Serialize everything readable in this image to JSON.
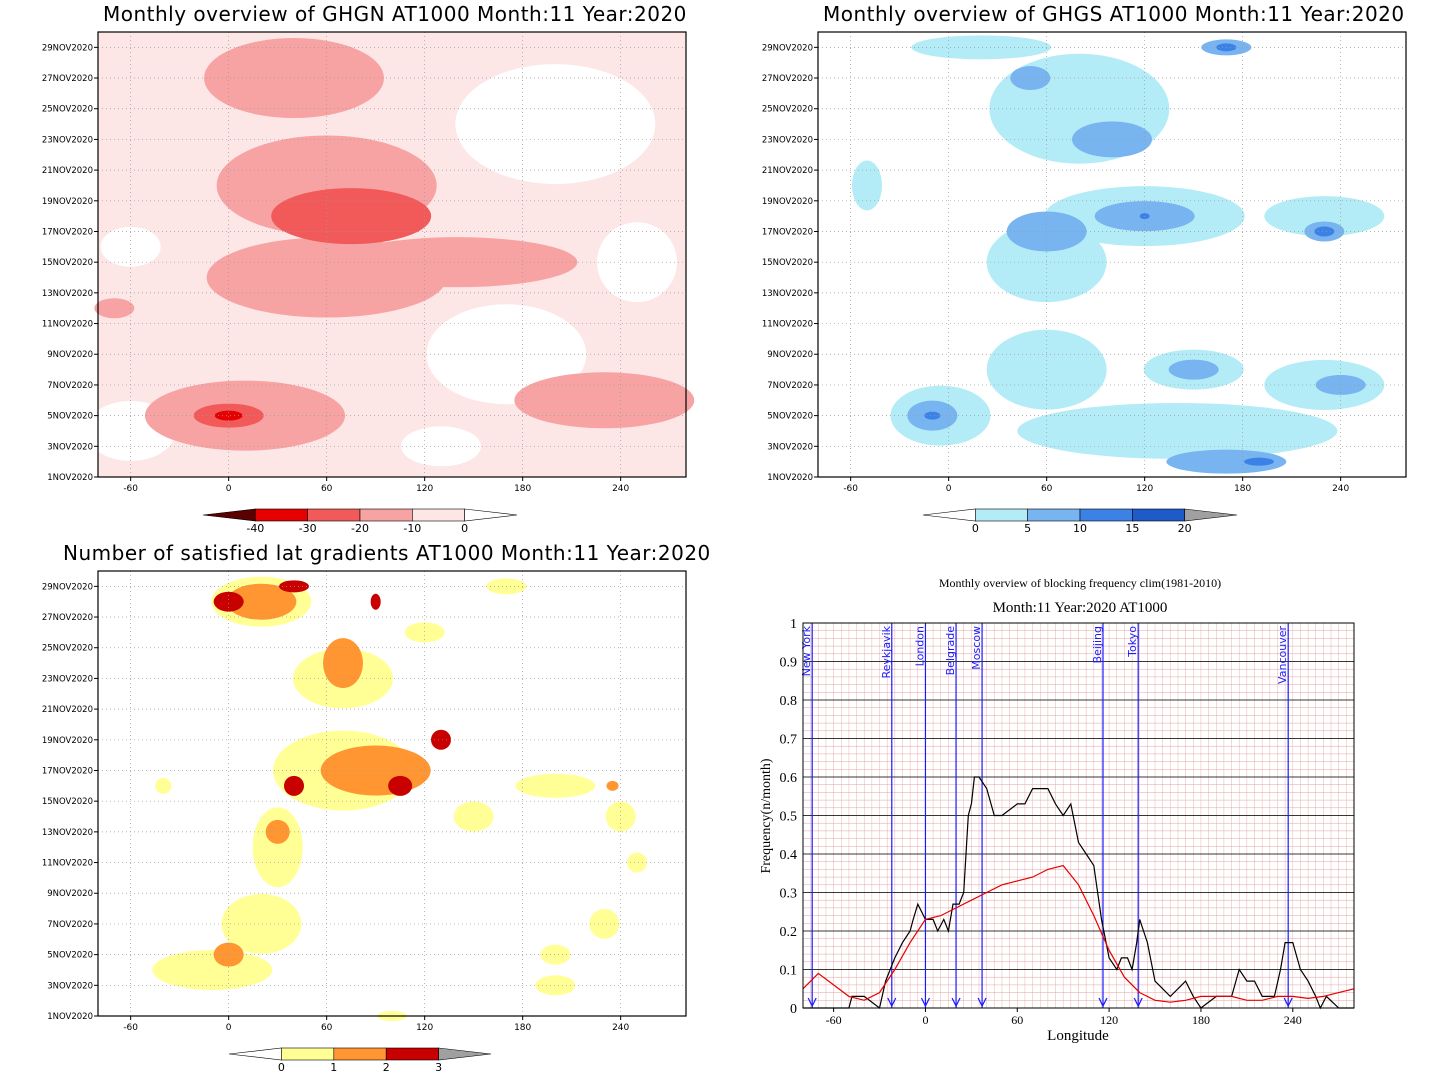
{
  "panels": {
    "ghgn": {
      "title": "Monthly overview of GHGN AT1000 Month:11 Year:2020",
      "cbar_labels": [
        "-40",
        "-30",
        "-20",
        "-10",
        "0"
      ],
      "cbar_colors": [
        "#5a0000",
        "#e60000",
        "#f25a5a",
        "#f7a3a3",
        "#fde6e6",
        "#ffffff"
      ]
    },
    "ghgs": {
      "title": "Monthly overview of GHGS AT1000 Month:11 Year:2020",
      "cbar_labels": [
        "0",
        "5",
        "10",
        "15",
        "20"
      ],
      "cbar_colors": [
        "#ffffff",
        "#b3ecf7",
        "#78b4f0",
        "#3c82e6",
        "#1e5ac8",
        "#a0a0a0"
      ]
    },
    "grad": {
      "title": "Number of satisfied lat gradients AT1000 Month:11 Year:2020",
      "cbar_labels": [
        "0",
        "1",
        "2",
        "3"
      ],
      "cbar_colors": [
        "#ffffff",
        "#ffff96",
        "#ff9632",
        "#c80000",
        "#a0a0a0"
      ]
    },
    "block": {
      "title1": "Monthly overview of blocking frequency clim(1981-2010)",
      "title2": "Month:11 Year:2020  AT1000",
      "xlabel": "Longitude",
      "ylabel": "Frequency(n/month)"
    }
  },
  "chart_data": [
    {
      "type": "heatmap",
      "title": "Monthly overview of GHGN AT1000 Month:11 Year:2020",
      "x_ticks": [
        "-60",
        "0",
        "60",
        "120",
        "180",
        "240"
      ],
      "y_ticks": [
        "1NOV2020",
        "3NOV2020",
        "5NOV2020",
        "7NOV2020",
        "9NOV2020",
        "11NOV2020",
        "13NOV2020",
        "15NOV2020",
        "17NOV2020",
        "19NOV2020",
        "21NOV2020",
        "23NOV2020",
        "25NOV2020",
        "27NOV2020",
        "29NOV2020"
      ],
      "xlim": [
        -80,
        280
      ],
      "legend_levels": [
        -40,
        -30,
        -20,
        -10,
        0
      ],
      "features": [
        {
          "lon": 0,
          "day": 5,
          "value": -30
        },
        {
          "lon": 75,
          "day": 18,
          "value": -30
        },
        {
          "lon": 70,
          "day": 16,
          "value": -20
        },
        {
          "lon": 40,
          "day": 28,
          "value": -20
        },
        {
          "lon": 150,
          "day": 16,
          "value": -20
        },
        {
          "lon": 230,
          "day": 6,
          "value": -20
        }
      ]
    },
    {
      "type": "heatmap",
      "title": "Monthly overview of GHGS AT1000 Month:11 Year:2020",
      "x_ticks": [
        "-60",
        "0",
        "60",
        "120",
        "180",
        "240"
      ],
      "y_ticks": [
        "1NOV2020",
        "3NOV2020",
        "5NOV2020",
        "7NOV2020",
        "9NOV2020",
        "11NOV2020",
        "13NOV2020",
        "15NOV2020",
        "17NOV2020",
        "19NOV2020",
        "21NOV2020",
        "23NOV2020",
        "25NOV2020",
        "27NOV2020",
        "29NOV2020"
      ],
      "xlim": [
        -80,
        280
      ],
      "legend_levels": [
        0,
        5,
        10,
        15,
        20
      ],
      "features": [
        {
          "lon": -10,
          "day": 5,
          "value": 15
        },
        {
          "lon": 230,
          "day": 17,
          "value": 15
        },
        {
          "lon": 190,
          "day": 2,
          "value": 15
        },
        {
          "lon": 120,
          "day": 18,
          "value": 10
        },
        {
          "lon": 240,
          "day": 7,
          "value": 10
        },
        {
          "lon": 170,
          "day": 29,
          "value": 15
        }
      ]
    },
    {
      "type": "heatmap",
      "title": "Number of satisfied lat gradients AT1000 Month:11 Year:2020",
      "x_ticks": [
        "-60",
        "0",
        "60",
        "120",
        "180",
        "240"
      ],
      "y_ticks": [
        "1NOV2020",
        "3NOV2020",
        "5NOV2020",
        "7NOV2020",
        "9NOV2020",
        "11NOV2020",
        "13NOV2020",
        "15NOV2020",
        "17NOV2020",
        "19NOV2020",
        "21NOV2020",
        "23NOV2020",
        "25NOV2020",
        "27NOV2020",
        "29NOV2020"
      ],
      "xlim": [
        -80,
        280
      ],
      "legend_levels": [
        0,
        1,
        2,
        3
      ],
      "features": [
        {
          "lon": 0,
          "day": 28,
          "value": 3
        },
        {
          "lon": 40,
          "day": 29,
          "value": 3
        },
        {
          "lon": 40,
          "day": 16,
          "value": 3
        },
        {
          "lon": 105,
          "day": 16,
          "value": 3
        },
        {
          "lon": 130,
          "day": 19,
          "value": 3
        },
        {
          "lon": 0,
          "day": 5,
          "value": 2
        },
        {
          "lon": 235,
          "day": 16,
          "value": 2
        }
      ]
    },
    {
      "type": "line",
      "title": "Monthly overview of blocking frequency clim(1981-2010)",
      "subtitle": "Month:11 Year:2020  AT1000",
      "xlabel": "Longitude",
      "ylabel": "Frequency(n/month)",
      "xlim": [
        -80,
        280
      ],
      "ylim": [
        0,
        1
      ],
      "x_ticks": [
        "-60",
        "0",
        "60",
        "120",
        "180",
        "240"
      ],
      "y_ticks": [
        "0",
        "0.1",
        "0.2",
        "0.3",
        "0.4",
        "0.5",
        "0.6",
        "0.7",
        "0.8",
        "0.9",
        "1"
      ],
      "grid": true,
      "cities": [
        {
          "name": "New York",
          "lon": -74
        },
        {
          "name": "Reykjavik",
          "lon": -22
        },
        {
          "name": "London",
          "lon": 0
        },
        {
          "name": "Belgrade",
          "lon": 20
        },
        {
          "name": "Moscow",
          "lon": 37
        },
        {
          "name": "Beijing",
          "lon": 116
        },
        {
          "name": "Tokyo",
          "lon": 139
        },
        {
          "name": "Vancouver",
          "lon": 237
        }
      ],
      "series": [
        {
          "color": "#000000",
          "x": [
            -80,
            -50,
            -48,
            -40,
            -30,
            -26,
            -20,
            -15,
            -10,
            -8,
            -5,
            0,
            5,
            8,
            12,
            15,
            18,
            22,
            25,
            28,
            30,
            32,
            35,
            40,
            45,
            50,
            60,
            65,
            70,
            75,
            80,
            85,
            90,
            95,
            100,
            105,
            110,
            115,
            118,
            120,
            125,
            128,
            132,
            135,
            138,
            140,
            145,
            150,
            160,
            170,
            175,
            180,
            190,
            200,
            205,
            210,
            215,
            220,
            228,
            232,
            235,
            240,
            245,
            250,
            255,
            258,
            262,
            270,
            280
          ],
          "y": [
            0,
            0,
            0.03,
            0.03,
            0,
            0.07,
            0.13,
            0.17,
            0.2,
            0.23,
            0.27,
            0.23,
            0.23,
            0.2,
            0.23,
            0.2,
            0.27,
            0.27,
            0.3,
            0.5,
            0.53,
            0.6,
            0.6,
            0.57,
            0.5,
            0.5,
            0.53,
            0.53,
            0.57,
            0.57,
            0.57,
            0.53,
            0.5,
            0.53,
            0.43,
            0.4,
            0.37,
            0.23,
            0.17,
            0.13,
            0.1,
            0.13,
            0.13,
            0.1,
            0.17,
            0.23,
            0.17,
            0.07,
            0.03,
            0.07,
            0.03,
            0,
            0.03,
            0.03,
            0.1,
            0.07,
            0.07,
            0.03,
            0.03,
            0.1,
            0.17,
            0.17,
            0.1,
            0.07,
            0.03,
            0,
            0.03,
            0,
            0
          ]
        },
        {
          "color": "#e60000",
          "x": [
            -80,
            -70,
            -60,
            -50,
            -40,
            -30,
            -20,
            -10,
            0,
            10,
            20,
            30,
            40,
            50,
            60,
            70,
            80,
            90,
            100,
            110,
            120,
            130,
            140,
            150,
            160,
            170,
            180,
            190,
            200,
            210,
            220,
            230,
            240,
            250,
            260,
            270,
            280
          ],
          "y": [
            0.05,
            0.09,
            0.06,
            0.03,
            0.02,
            0.04,
            0.1,
            0.17,
            0.23,
            0.24,
            0.26,
            0.28,
            0.3,
            0.32,
            0.33,
            0.34,
            0.36,
            0.37,
            0.32,
            0.24,
            0.15,
            0.08,
            0.04,
            0.02,
            0.015,
            0.02,
            0.03,
            0.03,
            0.03,
            0.02,
            0.02,
            0.03,
            0.03,
            0.025,
            0.03,
            0.04,
            0.05
          ]
        }
      ]
    }
  ]
}
